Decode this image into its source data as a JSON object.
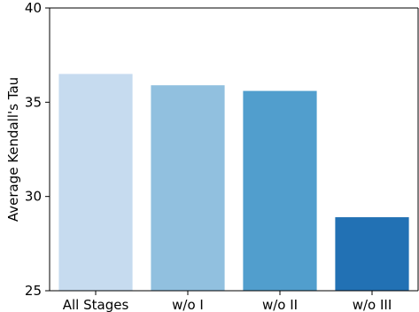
{
  "chart_data": {
    "type": "bar",
    "categories": [
      "All Stages",
      "w/o I",
      "w/o II",
      "w/o III"
    ],
    "values": [
      36.5,
      35.9,
      35.6,
      28.9
    ],
    "colors": [
      "#c6dbef",
      "#91c0df",
      "#519ecd",
      "#2271b4"
    ],
    "ylabel": "Average Kendall's Tau",
    "xlabel": "",
    "ylim": [
      25,
      40
    ],
    "yticks": [
      25,
      30,
      35,
      40
    ],
    "grid": false,
    "legend": "none"
  }
}
